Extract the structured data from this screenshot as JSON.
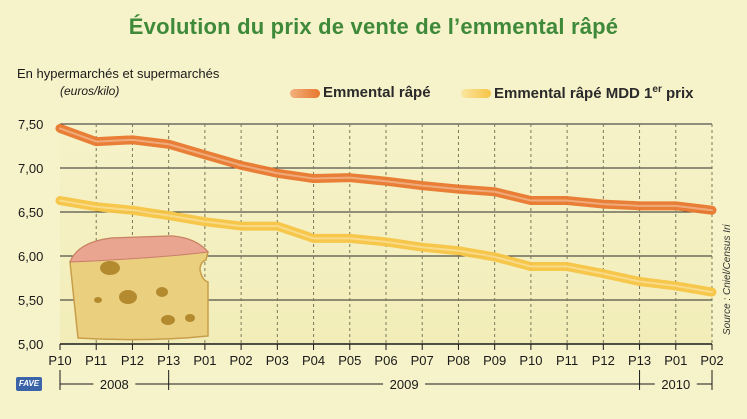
{
  "chart_data": {
    "type": "line",
    "title": "Évolution du prix de vente de l’emmental râpé",
    "subtitle": "En hypermarchés et supermarchés",
    "ylabel": "(euros/kilo)",
    "ylim": [
      5.0,
      7.5
    ],
    "yticks": [
      "5,00",
      "5,50",
      "6,00",
      "6,50",
      "7,00",
      "7,50"
    ],
    "categories": [
      "P10",
      "P11",
      "P12",
      "P13",
      "P01",
      "P02",
      "P03",
      "P04",
      "P05",
      "P06",
      "P07",
      "P08",
      "P09",
      "P10",
      "P11",
      "P12",
      "P13",
      "P01",
      "P02"
    ],
    "year_labels": [
      "2008",
      "2009",
      "2010"
    ],
    "series": [
      {
        "name": "Emmental râpé",
        "color": "#e8772e",
        "values": [
          7.45,
          7.3,
          7.32,
          7.27,
          7.15,
          7.03,
          6.94,
          6.88,
          6.89,
          6.85,
          6.8,
          6.76,
          6.73,
          6.63,
          6.63,
          6.59,
          6.57,
          6.57,
          6.52
        ]
      },
      {
        "name": "Emmental râpé MDD 1er prix",
        "color": "#f6c445",
        "values": [
          6.63,
          6.56,
          6.52,
          6.46,
          6.39,
          6.34,
          6.34,
          6.2,
          6.2,
          6.16,
          6.1,
          6.06,
          5.99,
          5.88,
          5.88,
          5.8,
          5.71,
          5.66,
          5.59
        ]
      }
    ],
    "grid": true,
    "legend_position": "top-right"
  },
  "legend": {
    "series1_label": "Emmental râpé",
    "series2_label_main": "Emmental râpé MDD 1",
    "series2_label_sup": "er",
    "series2_label_end": " prix"
  },
  "source": "Source : Cniel/Census Iri",
  "logo": "FAVE"
}
